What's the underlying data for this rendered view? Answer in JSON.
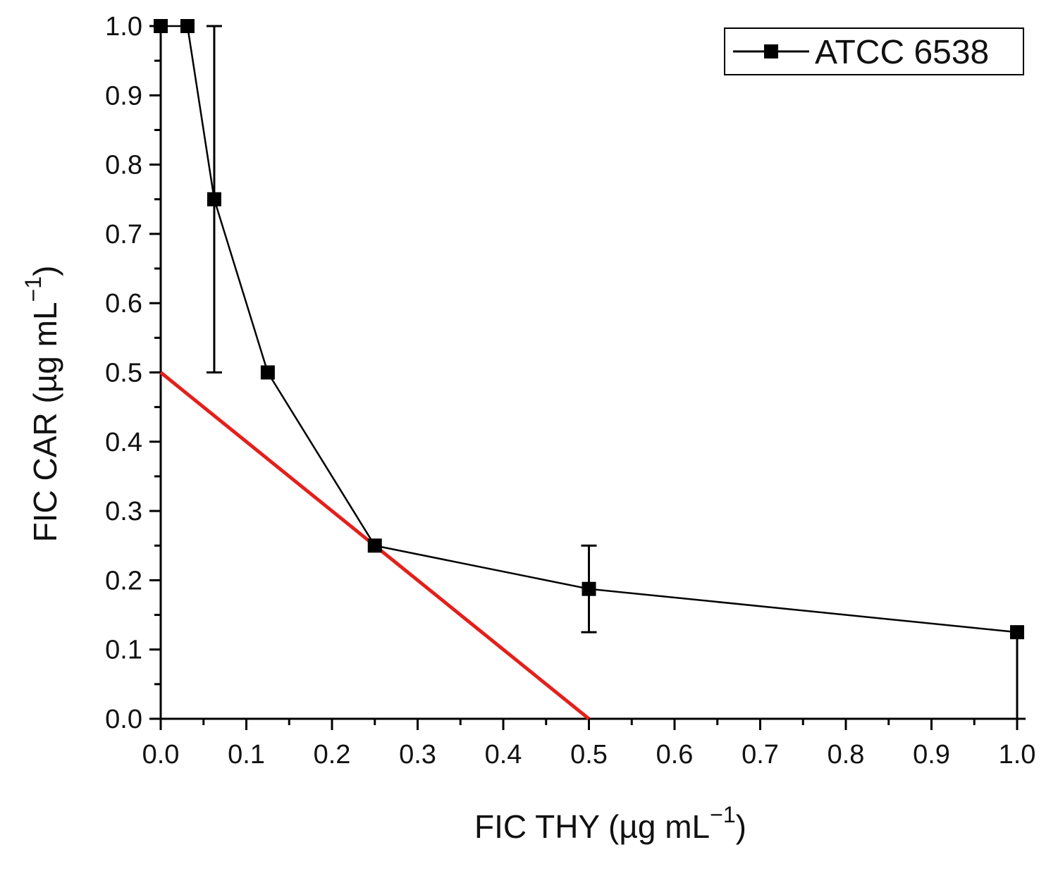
{
  "chart_data": {
    "type": "line",
    "title": "",
    "xlabel": "FIC THY (µg mL",
    "ylabel": "FIC CAR (µg mL",
    "unit_exponent": "−1",
    "unit_close": ")",
    "xlim": [
      0,
      1
    ],
    "ylim": [
      0,
      1
    ],
    "x_ticks": [
      0.0,
      0.1,
      0.2,
      0.3,
      0.4,
      0.5,
      0.6,
      0.7,
      0.8,
      0.9,
      1.0
    ],
    "x_tick_labels": [
      "0.0",
      "0.1",
      "0.2",
      "0.3",
      "0.4",
      "0.5",
      "0.6",
      "0.7",
      "0.8",
      "0.9",
      "1.0"
    ],
    "y_ticks": [
      0.0,
      0.1,
      0.2,
      0.3,
      0.4,
      0.5,
      0.6,
      0.7,
      0.8,
      0.9,
      1.0
    ],
    "y_tick_labels": [
      "0.0",
      "0.1",
      "0.2",
      "0.3",
      "0.4",
      "0.5",
      "0.6",
      "0.7",
      "0.8",
      "0.9",
      "1.0"
    ],
    "legend_position": "top-right",
    "grid": false,
    "series": [
      {
        "name": "ATCC 6538",
        "color": "#000000",
        "marker": "square",
        "x": [
          0.0,
          0.03125,
          0.0625,
          0.125,
          0.25,
          0.5,
          1.0
        ],
        "y": [
          1.0,
          1.0,
          0.75,
          0.5,
          0.25,
          0.1875,
          0.125
        ],
        "error_low": [
          null,
          null,
          0.5,
          null,
          null,
          0.125,
          0.0
        ],
        "error_high": [
          null,
          null,
          1.0,
          null,
          null,
          0.25,
          null
        ]
      }
    ],
    "reference_line": {
      "color": "#e3201b",
      "x": [
        0.0,
        0.5
      ],
      "y": [
        0.5,
        0.0
      ]
    }
  }
}
